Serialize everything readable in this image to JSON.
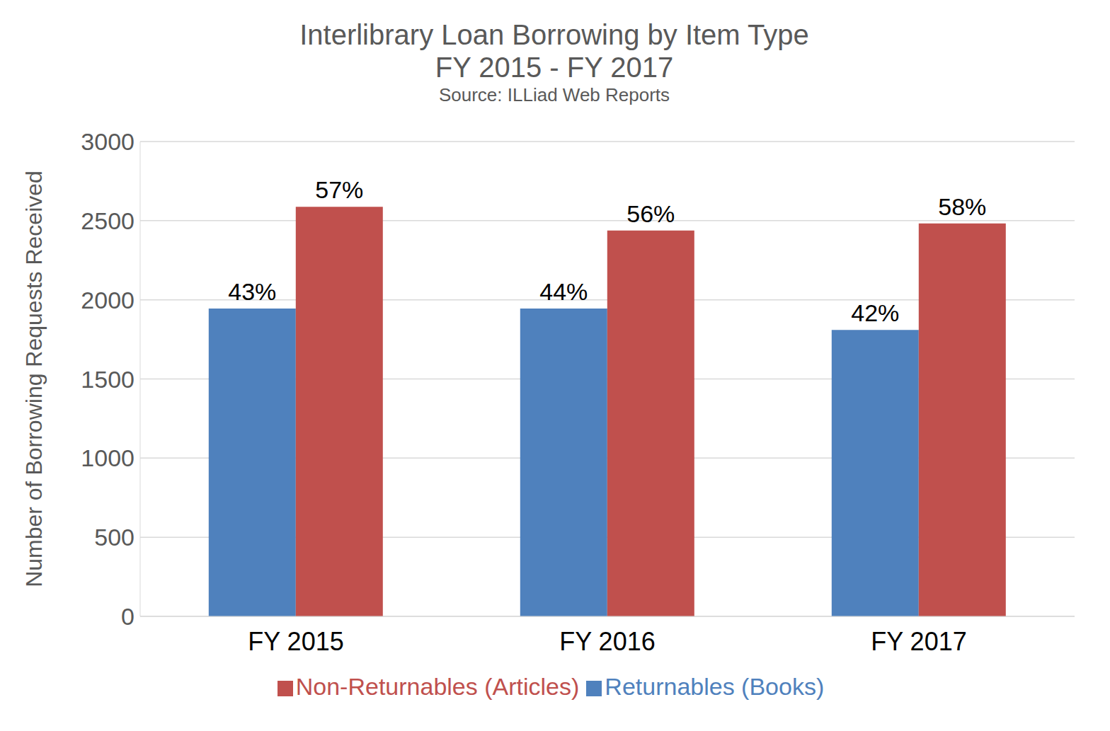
{
  "chart_data": {
    "type": "bar",
    "title": "Interlibrary Loan Borrowing by Item Type",
    "subtitle": "FY 2015 - FY 2017",
    "source": "Source: ILLiad Web Reports",
    "y_label": "Number of Borrowing Requests Received",
    "categories": [
      "FY 2015",
      "FY 2016",
      "FY 2017"
    ],
    "series": [
      {
        "name": "Returnables (Books)",
        "color": "#4f81bd",
        "values": [
          1945,
          1945,
          1810
        ],
        "percent_labels": [
          "43%",
          "44%",
          "42%"
        ]
      },
      {
        "name": "Non-Returnables (Articles)",
        "color": "#c0504d",
        "values": [
          2588,
          2438,
          2482
        ],
        "percent_labels": [
          "57%",
          "56%",
          "58%"
        ]
      }
    ],
    "ylim": [
      0,
      3000
    ],
    "yticks": [
      0,
      500,
      1000,
      1500,
      2000,
      2500,
      3000
    ],
    "grid": true,
    "legend": "bottom"
  }
}
